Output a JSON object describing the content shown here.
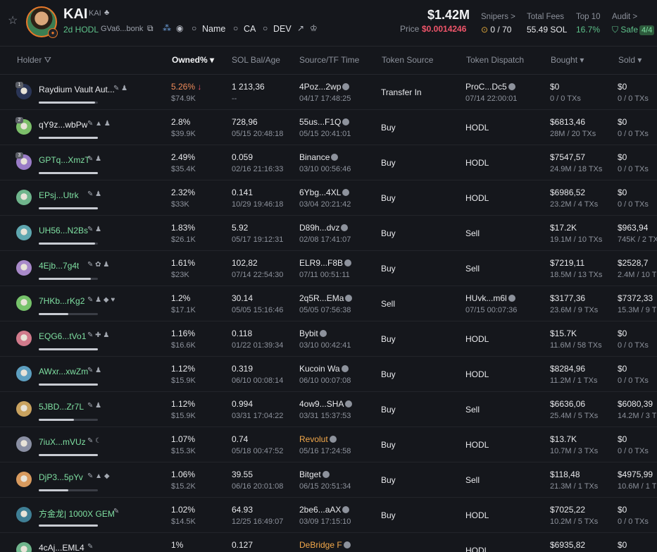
{
  "token": {
    "name": "KAI",
    "symbol": "KAI",
    "age_label": "2d HODL",
    "ca_short": "GVa6...bonk",
    "links": {
      "name": "Name",
      "ca": "CA",
      "dev": "DEV"
    },
    "market_cap": "$1.42M",
    "price_label": "Price",
    "price": "$0.0014246",
    "stats": {
      "snipers_label": "Snipers >",
      "snipers_value": "0 / 70",
      "fees_label": "Total Fees",
      "fees_value": "55.49 SOL",
      "top10_label": "Top 10",
      "top10_value": "16.7%",
      "audit_label": "Audit >",
      "audit_value": "Safe",
      "audit_badge": "4/4"
    }
  },
  "columns": {
    "holder": "Holder",
    "owned": "Owned%",
    "sol": "SOL Bal/Age",
    "source": "Source/TF Time",
    "token_source": "Token Source",
    "dispatch": "Token Dispatch",
    "bought": "Bought",
    "sold": "Sold"
  },
  "holders": [
    {
      "name": "Raydium Vault Aut...",
      "rank": "1",
      "owned": "5.26%",
      "owned_down": "↓",
      "owned_usd": "$74.9K",
      "sol": "1 213,36",
      "age": "--",
      "src": "4Poz...2wp",
      "src_time": "04/17 17:48:25",
      "token_src": "Transfer In",
      "dispatch": "ProC...Dc5",
      "dispatch_time": "07/14 22:00:01",
      "bought": "$0",
      "bought_tx": "0 / 0 TXs",
      "sold": "$0",
      "sold_tx": "0 / 0 TXs",
      "icons": "✎ ♟",
      "bar": 0.95,
      "av": "#2a3556"
    },
    {
      "name": "qY9z...wbPw",
      "rank": "2",
      "owned": "2.8%",
      "owned_usd": "$39.9K",
      "sol": "728,96",
      "age": "05/15 20:48:18",
      "src": "55us...F1Q",
      "src_time": "05/15 20:41:01",
      "token_src": "Buy",
      "dispatch": "HODL",
      "bought": "$6813,46",
      "bought_tx": "28M / 20 TXs",
      "sold": "$0",
      "sold_tx": "0 / 0 TXs",
      "icons": "✎ ▲ ♟",
      "bar": 1.0,
      "av": "#7cbf6a"
    },
    {
      "name": "GPTq...XmzT",
      "rank": "3",
      "owned": "2.49%",
      "owned_usd": "$35.4K",
      "sol": "0.059",
      "age": "02/16 21:16:33",
      "src": "Binance",
      "src_time": "03/10 00:56:46",
      "token_src": "Buy",
      "dispatch": "HODL",
      "bought": "$7547,57",
      "bought_tx": "24.9M / 18 TXs",
      "sold": "$0",
      "sold_tx": "0 / 0 TXs",
      "icons": "✎ ♟",
      "bar": 1.0,
      "av": "#9a7cc7"
    },
    {
      "name": "EPsj...Utrk",
      "owned": "2.32%",
      "owned_usd": "$33K",
      "sol": "0.141",
      "age": "10/29 19:46:18",
      "src": "6Ybg...4XL",
      "src_time": "03/04 20:21:42",
      "token_src": "Buy",
      "dispatch": "HODL",
      "bought": "$6986,52",
      "bought_tx": "23.2M / 4 TXs",
      "sold": "$0",
      "sold_tx": "0 / 0 TXs",
      "icons": "✎ ♟",
      "bar": 1.0,
      "av": "#6fb58c"
    },
    {
      "name": "UH56...N2Bs",
      "owned": "1.83%",
      "owned_usd": "$26.1K",
      "sol": "5.92",
      "age": "05/17 19:12:31",
      "src": "D89h...dvz",
      "src_time": "02/08 17:41:07",
      "token_src": "Buy",
      "dispatch": "Sell",
      "bought": "$17.2K",
      "bought_tx": "19.1M / 10 TXs",
      "sold": "$963,94",
      "sold_tx": "745K / 2 TX",
      "icons": "✎ ♟",
      "bar": 0.95,
      "av": "#5fa7b0"
    },
    {
      "name": "4Ejb...7g4t",
      "owned": "1.61%",
      "owned_usd": "$23K",
      "sol": "102,82",
      "age": "07/14 22:54:30",
      "src": "ELR9...F8B",
      "src_time": "07/11 00:51:11",
      "token_src": "Buy",
      "dispatch": "Sell",
      "bought": "$7219,11",
      "bought_tx": "18.5M / 13 TXs",
      "sold": "$2528,7",
      "sold_tx": "2.4M / 10 T",
      "icons": "✎ ✿ ♟",
      "bar": 0.88,
      "av": "#a889c9"
    },
    {
      "name": "7HKb...rKg2",
      "owned": "1.2%",
      "owned_usd": "$17.1K",
      "sol": "30.14",
      "age": "05/05 15:16:46",
      "src": "2q5R...EMa",
      "src_time": "05/05 07:56:38",
      "token_src": "Sell",
      "dispatch": "HUvk...m6l",
      "dispatch_time": "07/15 00:07:36",
      "bought": "$3177,36",
      "bought_tx": "23.6M / 9 TXs",
      "sold": "$7372,33",
      "sold_tx": "15.3M / 9 T",
      "icons": "✎ ♟ ◆ ♥",
      "bar": 0.5,
      "av": "#76c26a"
    },
    {
      "name": "EQG6...tVo1",
      "owned": "1.16%",
      "owned_usd": "$16.6K",
      "sol": "0.118",
      "age": "01/22 01:39:34",
      "src": "Bybit",
      "src_time": "03/10 00:42:41",
      "token_src": "Buy",
      "dispatch": "HODL",
      "bought": "$15.7K",
      "bought_tx": "11.6M / 58 TXs",
      "sold": "$0",
      "sold_tx": "0 / 0 TXs",
      "icons": "✎ ✚ ♟",
      "bar": 1.0,
      "av": "#d07a8b"
    },
    {
      "name": "AWxr...xwZm",
      "owned": "1.12%",
      "owned_usd": "$15.9K",
      "sol": "0.319",
      "age": "06/10 00:08:14",
      "src": "Kucoin Wa",
      "src_time": "06/10 00:07:08",
      "token_src": "Buy",
      "dispatch": "HODL",
      "bought": "$8284,96",
      "bought_tx": "11.2M / 1 TXs",
      "sold": "$0",
      "sold_tx": "0 / 0 TXs",
      "icons": "✎ ♟",
      "bar": 1.0,
      "av": "#5d9fc0"
    },
    {
      "name": "5JBD...Zr7L",
      "owned": "1.12%",
      "owned_usd": "$15.9K",
      "sol": "0.994",
      "age": "03/31 17:04:22",
      "src": "4ow9...SHA",
      "src_time": "03/31 15:37:53",
      "token_src": "Buy",
      "dispatch": "Sell",
      "bought": "$6636,06",
      "bought_tx": "25.4M / 5 TXs",
      "sold": "$6080,39",
      "sold_tx": "14.2M / 3 T",
      "icons": "✎ ♟",
      "bar": 0.6,
      "av": "#c9a25f"
    },
    {
      "name": "7iuX...mVUz",
      "owned": "1.07%",
      "owned_usd": "$15.3K",
      "sol": "0.74",
      "age": "05/18 00:47:52",
      "src": "Revolut",
      "src_orange": true,
      "src_time": "05/16 17:24:58",
      "token_src": "Buy",
      "dispatch": "HODL",
      "bought": "$13.7K",
      "bought_tx": "10.7M / 3 TXs",
      "sold": "$0",
      "sold_tx": "0 / 0 TXs",
      "icons": "✎ ☾",
      "bar": 1.0,
      "av": "#8a8fa3"
    },
    {
      "name": "DjP3...5pYv",
      "owned": "1.06%",
      "owned_usd": "$15.2K",
      "sol": "39.55",
      "age": "06/16 20:01:08",
      "src": "Bitget",
      "src_time": "06/15 20:51:34",
      "token_src": "Buy",
      "dispatch": "Sell",
      "bought": "$118,48",
      "bought_tx": "21.3M / 1 TXs",
      "sold": "$4975,99",
      "sold_tx": "10.6M / 1 T",
      "icons": "✎ ▲ ◆",
      "bar": 0.5,
      "av": "#d89a5e"
    },
    {
      "name": "方金龙| 1000X GEM",
      "owned": "1.02%",
      "owned_usd": "$14.5K",
      "sol": "64.93",
      "age": "12/25 16:49:07",
      "src": "2be6...aAX",
      "src_time": "03/09 17:15:10",
      "token_src": "Buy",
      "dispatch": "HODL",
      "bought": "$7025,22",
      "bought_tx": "10.2M / 5 TXs",
      "sold": "$0",
      "sold_tx": "0 / 0 TXs",
      "icons": "✎",
      "bar": 1.0,
      "av": "#3f7f95"
    },
    {
      "name": "4cAj...EML4",
      "owned": "1%",
      "owned_usd": "",
      "sol": "0.127",
      "age": "",
      "src": "DeBridge F",
      "src_orange": true,
      "src_time": "",
      "token_src": "",
      "dispatch": "HODL",
      "bought": "$6935,82",
      "bought_tx": "",
      "sold": "$0",
      "sold_tx": "",
      "icons": "✎",
      "bar": 1.0,
      "av": "#6fb58c"
    }
  ]
}
